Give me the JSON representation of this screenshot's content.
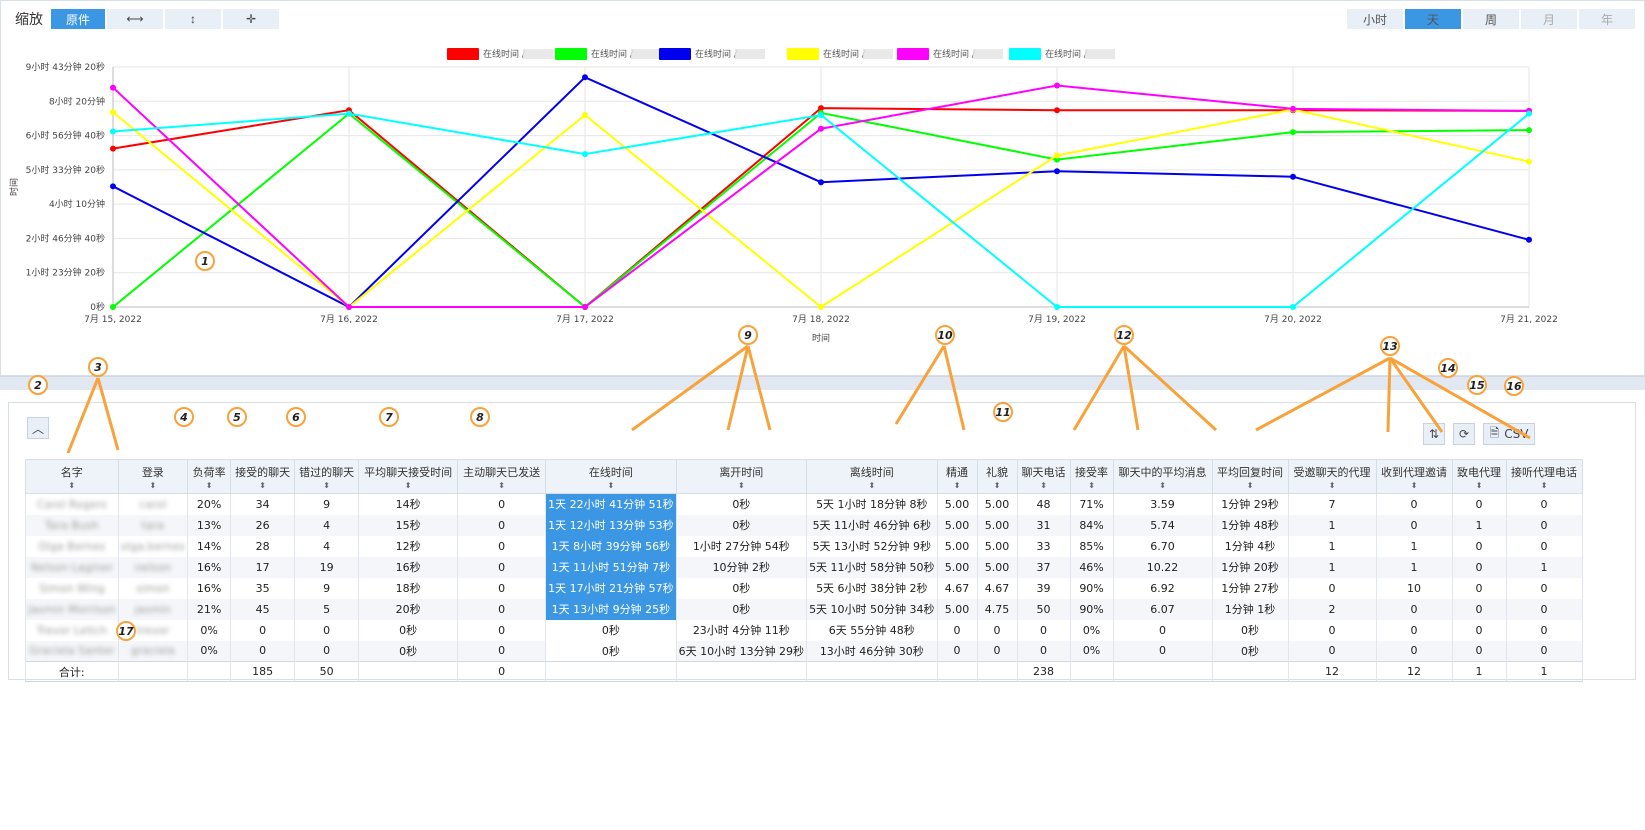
{
  "toolbar": {
    "zoom_label": "缩放",
    "zoom_buttons": [
      {
        "label": "原件",
        "active": true
      },
      {
        "label": "⟷",
        "icon": "horizontal-zoom-icon"
      },
      {
        "label": "↕",
        "icon": "vertical-zoom-icon"
      },
      {
        "label": "✛",
        "icon": "move-zoom-icon"
      }
    ],
    "periods": [
      {
        "label": "小时",
        "active": false
      },
      {
        "label": "天",
        "active": true
      },
      {
        "label": "周",
        "active": false
      },
      {
        "label": "月",
        "disabled": true
      },
      {
        "label": "年",
        "disabled": true
      }
    ]
  },
  "chart_data": {
    "type": "line",
    "xlabel": "时间",
    "ylabel": "时间",
    "categories": [
      "7月 15, 2022",
      "7月 16, 2022",
      "7月 17, 2022",
      "7月 18, 2022",
      "7月 19, 2022",
      "7月 20, 2022",
      "7月 21, 2022"
    ],
    "yticks": [
      "0秒",
      "1小时 23分钟 20秒",
      "2小时 46分钟 40秒",
      "4小时 10分钟",
      "5小时 33分钟 20秒",
      "6小时 56分钟 40秒",
      "8小时 20分钟",
      "9小时 43分钟 20秒"
    ],
    "ylim_seconds": [
      0,
      35000
    ],
    "grid": true,
    "legend_position": "top",
    "series": [
      {
        "name": "在线时间 /",
        "color": "#ff0000",
        "values": [
          23100,
          28700,
          0,
          29000,
          28700,
          28700,
          28600
        ]
      },
      {
        "name": "在线时间 /",
        "color": "#00ff00",
        "values": [
          0,
          28200,
          0,
          28300,
          21500,
          25500,
          25800
        ]
      },
      {
        "name": "在线时间 /",
        "color": "#0000ee",
        "values": [
          17600,
          0,
          33500,
          18200,
          19800,
          19000,
          9800
        ]
      },
      {
        "name": "在线时间 /",
        "color": "#ffff00",
        "values": [
          28400,
          0,
          28000,
          0,
          22100,
          28800,
          21200
        ]
      },
      {
        "name": "在线时间 /",
        "color": "#ff00ff",
        "values": [
          32000,
          0,
          0,
          26000,
          32300,
          28900,
          28600
        ]
      },
      {
        "name": "在线时间 /",
        "color": "#00ffff",
        "values": [
          25600,
          28200,
          22300,
          28000,
          0,
          0,
          28200
        ]
      }
    ]
  },
  "tools": {
    "csv_label": "CSV"
  },
  "table": {
    "headers": [
      "名字",
      "登录",
      "负荷率",
      "接受的聊天",
      "错过的聊天",
      "平均聊天接受时间",
      "主动聊天已发送",
      "在线时间",
      "离开时间",
      "离线时间",
      "精通",
      "礼貌",
      "聊天电话",
      "接受率",
      "聊天中的平均消息",
      "平均回复时间",
      "受邀聊天的代理",
      "收到代理邀请",
      "致电代理",
      "接听代理电话"
    ],
    "rows": [
      [
        "Carol Rogers",
        "carol",
        "20%",
        "34",
        "9",
        "14秒",
        "0",
        "1天 22小时 41分钟 51秒",
        "0秒",
        "5天 1小时 18分钟 8秒",
        "5.00",
        "5.00",
        "48",
        "71%",
        "3.59",
        "1分钟 29秒",
        "7",
        "0",
        "0",
        "0"
      ],
      [
        "Tara Bush",
        "tara",
        "13%",
        "26",
        "4",
        "15秒",
        "0",
        "1天 12小时 13分钟 53秒",
        "0秒",
        "5天 11小时 46分钟 6秒",
        "5.00",
        "5.00",
        "31",
        "84%",
        "5.74",
        "1分钟 48秒",
        "1",
        "0",
        "1",
        "0"
      ],
      [
        "Olga Bernes",
        "olga.bernes",
        "14%",
        "28",
        "4",
        "12秒",
        "0",
        "1天 8小时 39分钟 56秒",
        "1小时 27分钟 54秒",
        "5天 13小时 52分钟 9秒",
        "5.00",
        "5.00",
        "33",
        "85%",
        "6.70",
        "1分钟 4秒",
        "1",
        "1",
        "0",
        "0"
      ],
      [
        "Nelson Laginer",
        "nelson",
        "16%",
        "17",
        "19",
        "16秒",
        "0",
        "1天 11小时 51分钟 7秒",
        "10分钟 2秒",
        "5天 11小时 58分钟 50秒",
        "5.00",
        "5.00",
        "37",
        "46%",
        "10.22",
        "1分钟 20秒",
        "1",
        "1",
        "0",
        "1"
      ],
      [
        "Simon Wing",
        "simon",
        "16%",
        "35",
        "9",
        "18秒",
        "0",
        "1天 17小时 21分钟 57秒",
        "0秒",
        "5天 6小时 38分钟 2秒",
        "4.67",
        "4.67",
        "39",
        "90%",
        "6.92",
        "1分钟 27秒",
        "0",
        "10",
        "0",
        "0"
      ],
      [
        "Jasmin Morrison",
        "jasmin",
        "21%",
        "45",
        "5",
        "20秒",
        "0",
        "1天 13小时 9分钟 25秒",
        "0秒",
        "5天 10小时 50分钟 34秒",
        "5.00",
        "4.75",
        "50",
        "90%",
        "6.07",
        "1分钟 1秒",
        "2",
        "0",
        "0",
        "0"
      ],
      [
        "Trevor Leitch",
        "trevor",
        "0%",
        "0",
        "0",
        "0秒",
        "0",
        "0秒",
        "23小时 4分钟 11秒",
        "6天 55分钟 48秒",
        "0",
        "0",
        "0",
        "0%",
        "0",
        "0秒",
        "0",
        "0",
        "0",
        "0"
      ],
      [
        "Graciela Santer",
        "graciela",
        "0%",
        "0",
        "0",
        "0秒",
        "0",
        "0秒",
        "6天 10小时 13分钟 29秒",
        "13小时 46分钟 30秒",
        "0",
        "0",
        "0",
        "0%",
        "0",
        "0秒",
        "0",
        "0",
        "0",
        "0"
      ]
    ],
    "footer": [
      "合计:",
      "",
      "",
      "185",
      "50",
      "",
      "0",
      "",
      "",
      "",
      "",
      "",
      "238",
      "",
      "",
      "",
      "12",
      "12",
      "1",
      "1"
    ]
  },
  "callouts": [
    "1",
    "2",
    "3",
    "4",
    "5",
    "6",
    "7",
    "8",
    "9",
    "10",
    "11",
    "12",
    "13",
    "14",
    "15",
    "16",
    "17"
  ]
}
